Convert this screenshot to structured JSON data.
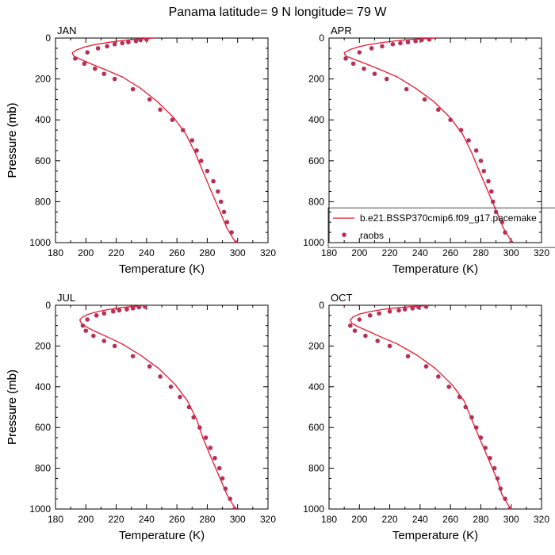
{
  "figure": {
    "title": "Panama  latitude= 9 N longitude= 79 W"
  },
  "colors": {
    "model_line": "#e8192c",
    "obs_marker": "#b5305a",
    "axis": "#000000"
  },
  "legend": {
    "panel": "APR",
    "model_label": "b.e21.BSSP370cmip6.f09_g17.pacemake",
    "obs_label": "raobs"
  },
  "chart_data": [
    {
      "type": "line",
      "panel_label": "JAN",
      "xlabel": "Temperature (K)",
      "ylabel": "Pressure (mb)",
      "xlim": [
        180,
        320
      ],
      "ylim": [
        1000,
        0
      ],
      "xticks": [
        180,
        200,
        220,
        240,
        260,
        280,
        300,
        320
      ],
      "yticks": [
        0,
        200,
        400,
        600,
        800,
        1000
      ],
      "series": [
        {
          "name": "b.e21.BSSP370cmip6.f09_g17.pacemake",
          "kind": "line",
          "points": [
            [
              245,
              0
            ],
            [
              238,
              3
            ],
            [
              230,
              7
            ],
            [
              222,
              14
            ],
            [
              214,
              22
            ],
            [
              206,
              32
            ],
            [
              199,
              44
            ],
            [
              194,
              58
            ],
            [
              191,
              72
            ],
            [
              192,
              88
            ],
            [
              197,
              105
            ],
            [
              204,
              128
            ],
            [
              213,
              155
            ],
            [
              224,
              190
            ],
            [
              236,
              245
            ],
            [
              247,
              310
            ],
            [
              258,
              390
            ],
            [
              266,
              470
            ],
            [
              272,
              560
            ],
            [
              277,
              650
            ],
            [
              281,
              720
            ],
            [
              285,
              790
            ],
            [
              289,
              860
            ],
            [
              293,
              930
            ],
            [
              297,
              980
            ],
            [
              299,
              1000
            ]
          ]
        },
        {
          "name": "raobs",
          "kind": "scatter",
          "points": [
            [
              240,
              7
            ],
            [
              236,
              10
            ],
            [
              233,
              15
            ],
            [
              228,
              20
            ],
            [
              224,
              25
            ],
            [
              219,
              30
            ],
            [
              214,
              40
            ],
            [
              208,
              50
            ],
            [
              201,
              70
            ],
            [
              193,
              100
            ],
            [
              199,
              125
            ],
            [
              206,
              150
            ],
            [
              212,
              175
            ],
            [
              219,
              200
            ],
            [
              231,
              250
            ],
            [
              242,
              300
            ],
            [
              249,
              350
            ],
            [
              257,
              400
            ],
            [
              264,
              450
            ],
            [
              270,
              500
            ],
            [
              273,
              550
            ],
            [
              276,
              600
            ],
            [
              280,
              650
            ],
            [
              284,
              700
            ],
            [
              287,
              750
            ],
            [
              289,
              800
            ],
            [
              291,
              850
            ],
            [
              293,
              900
            ],
            [
              296,
              950
            ],
            [
              299,
              1000
            ]
          ]
        }
      ]
    },
    {
      "type": "line",
      "panel_label": "APR",
      "xlabel": "Temperature (K)",
      "ylabel": "Pressure (mb)",
      "xlim": [
        180,
        320
      ],
      "ylim": [
        1000,
        0
      ],
      "xticks": [
        180,
        200,
        220,
        240,
        260,
        280,
        300,
        320
      ],
      "yticks": [
        0,
        200,
        400,
        600,
        800,
        1000
      ],
      "series": [
        {
          "name": "b.e21.BSSP370cmip6.f09_g17.pacemake",
          "kind": "line",
          "points": [
            [
              250,
              0
            ],
            [
              242,
              3
            ],
            [
              234,
              7
            ],
            [
              225,
              13
            ],
            [
              216,
              21
            ],
            [
              207,
              31
            ],
            [
              200,
              42
            ],
            [
              194,
              56
            ],
            [
              190,
              72
            ],
            [
              191,
              88
            ],
            [
              197,
              105
            ],
            [
              205,
              128
            ],
            [
              214,
              155
            ],
            [
              225,
              190
            ],
            [
              237,
              245
            ],
            [
              249,
              310
            ],
            [
              260,
              390
            ],
            [
              268,
              470
            ],
            [
              274,
              560
            ],
            [
              279,
              650
            ],
            [
              283,
              720
            ],
            [
              287,
              790
            ],
            [
              291,
              860
            ],
            [
              295,
              930
            ],
            [
              299,
              980
            ],
            [
              301,
              1000
            ]
          ]
        },
        {
          "name": "raobs",
          "kind": "scatter",
          "points": [
            [
              246,
              7
            ],
            [
              241,
              10
            ],
            [
              237,
              15
            ],
            [
              232,
              20
            ],
            [
              227,
              25
            ],
            [
              222,
              30
            ],
            [
              215,
              40
            ],
            [
              208,
              50
            ],
            [
              200,
              70
            ],
            [
              191,
              100
            ],
            [
              196,
              125
            ],
            [
              203,
              150
            ],
            [
              210,
              175
            ],
            [
              218,
              200
            ],
            [
              231,
              250
            ],
            [
              243,
              300
            ],
            [
              252,
              350
            ],
            [
              260,
              400
            ],
            [
              267,
              450
            ],
            [
              272,
              500
            ],
            [
              277,
              550
            ],
            [
              280,
              600
            ],
            [
              282,
              650
            ],
            [
              285,
              700
            ],
            [
              287,
              750
            ],
            [
              288,
              800
            ],
            [
              290,
              850
            ],
            [
              294,
              900
            ],
            [
              296,
              950
            ],
            [
              300,
              1000
            ]
          ]
        }
      ]
    },
    {
      "type": "line",
      "panel_label": "JUL",
      "xlabel": "Temperature (K)",
      "ylabel": "Pressure (mb)",
      "xlim": [
        180,
        320
      ],
      "ylim": [
        1000,
        0
      ],
      "xticks": [
        180,
        200,
        220,
        240,
        260,
        280,
        300,
        320
      ],
      "yticks": [
        0,
        200,
        400,
        600,
        800,
        1000
      ],
      "series": [
        {
          "name": "b.e21.BSSP370cmip6.f09_g17.pacemake",
          "kind": "line",
          "points": [
            [
              242,
              0
            ],
            [
              236,
              3
            ],
            [
              229,
              7
            ],
            [
              222,
              13
            ],
            [
              215,
              21
            ],
            [
              208,
              31
            ],
            [
              202,
              43
            ],
            [
              198,
              57
            ],
            [
              196,
              72
            ],
            [
              197,
              88
            ],
            [
              200,
              105
            ],
            [
              206,
              128
            ],
            [
              214,
              155
            ],
            [
              224,
              190
            ],
            [
              236,
              245
            ],
            [
              248,
              310
            ],
            [
              259,
              390
            ],
            [
              267,
              470
            ],
            [
              273,
              560
            ],
            [
              277,
              650
            ],
            [
              281,
              720
            ],
            [
              285,
              790
            ],
            [
              289,
              860
            ],
            [
              293,
              930
            ],
            [
              297,
              980
            ],
            [
              299,
              1000
            ]
          ]
        },
        {
          "name": "raobs",
          "kind": "scatter",
          "points": [
            [
              239,
              7
            ],
            [
              235,
              10
            ],
            [
              231,
              15
            ],
            [
              227,
              20
            ],
            [
              222,
              25
            ],
            [
              218,
              30
            ],
            [
              212,
              40
            ],
            [
              207,
              50
            ],
            [
              201,
              70
            ],
            [
              198,
              100
            ],
            [
              200,
              125
            ],
            [
              205,
              150
            ],
            [
              212,
              175
            ],
            [
              219,
              200
            ],
            [
              231,
              250
            ],
            [
              242,
              300
            ],
            [
              249,
              350
            ],
            [
              256,
              400
            ],
            [
              262,
              450
            ],
            [
              268,
              500
            ],
            [
              271,
              550
            ],
            [
              275,
              600
            ],
            [
              279,
              650
            ],
            [
              282,
              700
            ],
            [
              285,
              750
            ],
            [
              288,
              800
            ],
            [
              290,
              850
            ],
            [
              292,
              900
            ],
            [
              295,
              950
            ],
            [
              298,
              1000
            ]
          ]
        }
      ]
    },
    {
      "type": "line",
      "panel_label": "OCT",
      "xlabel": "Temperature (K)",
      "ylabel": "Pressure (mb)",
      "xlim": [
        180,
        320
      ],
      "ylim": [
        1000,
        0
      ],
      "xticks": [
        180,
        200,
        220,
        240,
        260,
        280,
        300,
        320
      ],
      "yticks": [
        0,
        200,
        400,
        600,
        800,
        1000
      ],
      "series": [
        {
          "name": "b.e21.BSSP370cmip6.f09_g17.pacemake",
          "kind": "line",
          "points": [
            [
              250,
              0
            ],
            [
              242,
              3
            ],
            [
              233,
              7
            ],
            [
              224,
              13
            ],
            [
              215,
              21
            ],
            [
              207,
              31
            ],
            [
              200,
              43
            ],
            [
              196,
              57
            ],
            [
              194,
              72
            ],
            [
              195,
              88
            ],
            [
              199,
              105
            ],
            [
              206,
              128
            ],
            [
              214,
              155
            ],
            [
              225,
              190
            ],
            [
              238,
              245
            ],
            [
              250,
              310
            ],
            [
              261,
              390
            ],
            [
              269,
              470
            ],
            [
              274,
              560
            ],
            [
              279,
              650
            ],
            [
              283,
              720
            ],
            [
              287,
              790
            ],
            [
              291,
              860
            ],
            [
              294,
              930
            ],
            [
              298,
              980
            ],
            [
              300,
              1000
            ]
          ]
        },
        {
          "name": "raobs",
          "kind": "scatter",
          "points": [
            [
              244,
              7
            ],
            [
              239,
              10
            ],
            [
              235,
              15
            ],
            [
              230,
              20
            ],
            [
              226,
              25
            ],
            [
              220,
              30
            ],
            [
              213,
              40
            ],
            [
              207,
              50
            ],
            [
              200,
              70
            ],
            [
              194,
              100
            ],
            [
              197,
              125
            ],
            [
              204,
              150
            ],
            [
              212,
              175
            ],
            [
              220,
              200
            ],
            [
              232,
              250
            ],
            [
              244,
              300
            ],
            [
              252,
              350
            ],
            [
              259,
              400
            ],
            [
              266,
              450
            ],
            [
              270,
              500
            ],
            [
              274,
              550
            ],
            [
              277,
              600
            ],
            [
              280,
              650
            ],
            [
              283,
              700
            ],
            [
              286,
              750
            ],
            [
              289,
              800
            ],
            [
              291,
              850
            ],
            [
              293,
              900
            ],
            [
              296,
              950
            ],
            [
              299,
              1000
            ]
          ]
        }
      ]
    }
  ]
}
